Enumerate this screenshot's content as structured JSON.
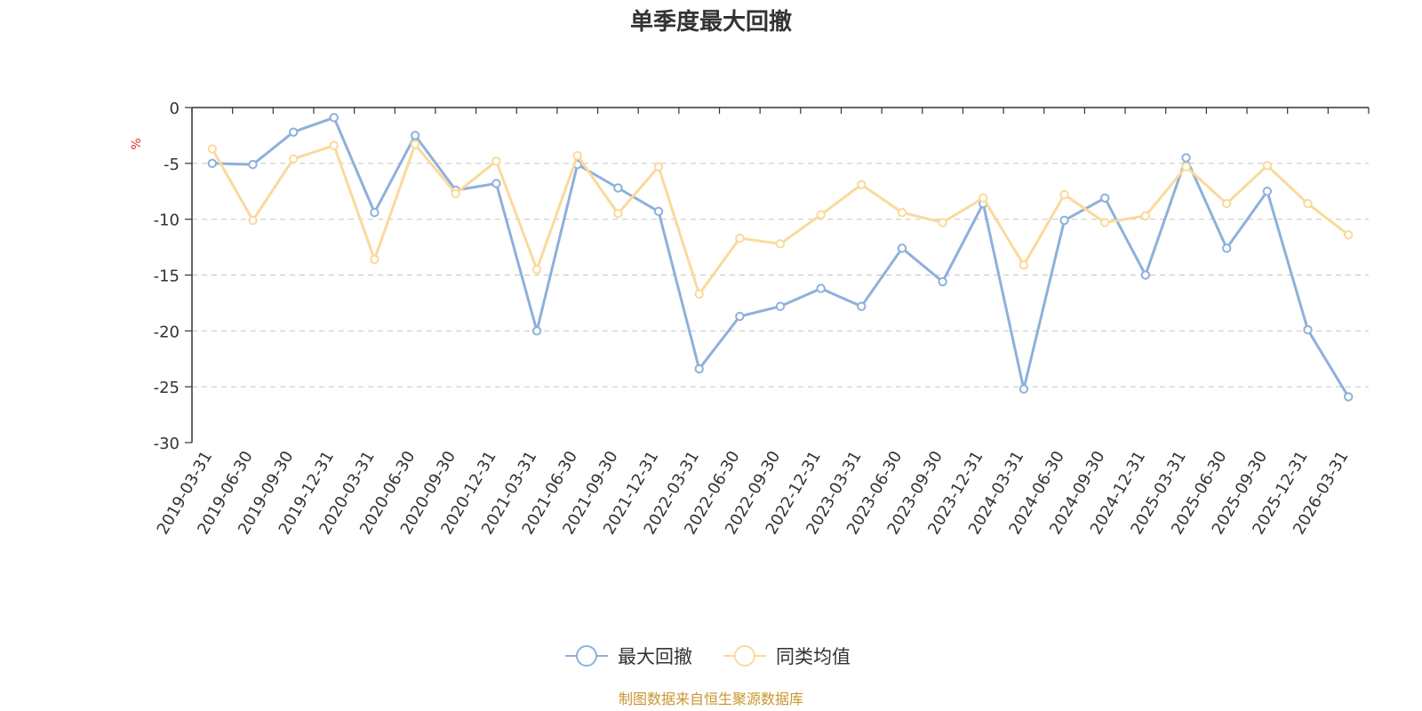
{
  "chart_data": {
    "type": "line",
    "title": "单季度最大回撤",
    "ylabel": "%",
    "ylim": [
      -30,
      0
    ],
    "yticks": [
      0,
      -5,
      -10,
      -15,
      -20,
      -25,
      -30
    ],
    "grid": true,
    "legend_position": "bottom",
    "x": [
      "2019-03-31",
      "2019-06-30",
      "2019-09-30",
      "2019-12-31",
      "2020-03-31",
      "2020-06-30",
      "2020-09-30",
      "2020-12-31",
      "2021-03-31",
      "2021-06-30",
      "2021-09-30",
      "2021-12-31",
      "2022-03-31",
      "2022-06-30",
      "2022-09-30",
      "2022-12-31",
      "2023-03-31",
      "2023-06-30",
      "2023-09-30",
      "2023-12-31",
      "2024-03-31",
      "2024-06-30",
      "2024-09-30",
      "2024-12-31",
      "2025-03-31",
      "2025-06-30",
      "2025-09-30",
      "2025-12-31",
      "2026-03-31"
    ],
    "series": [
      {
        "name": "最大回撤",
        "color": "#8eb0dc",
        "values": [
          -5.0,
          -5.1,
          -2.2,
          -0.9,
          -9.4,
          -2.5,
          -7.4,
          -6.8,
          -20.0,
          -5.1,
          -7.2,
          -9.3,
          -23.4,
          -18.7,
          -17.8,
          -16.2,
          -17.8,
          -12.6,
          -15.6,
          -8.6,
          -25.2,
          -10.1,
          -8.1,
          -15.0,
          -4.5,
          -12.6,
          -7.5,
          -19.9,
          -25.9
        ]
      },
      {
        "name": "同类均值",
        "color": "#fbd99b",
        "values": [
          -3.7,
          -10.1,
          -4.6,
          -3.4,
          -13.6,
          -3.3,
          -7.7,
          -4.8,
          -14.5,
          -4.3,
          -9.5,
          -5.3,
          -16.7,
          -11.7,
          -12.2,
          -9.6,
          -6.9,
          -9.4,
          -10.3,
          -8.1,
          -14.1,
          -7.8,
          -10.3,
          -9.7,
          -5.3,
          -8.6,
          -5.2,
          -8.6,
          -11.4
        ]
      }
    ],
    "footer": "制图数据来自恒生聚源数据库",
    "footer_color": "#c8962e"
  }
}
